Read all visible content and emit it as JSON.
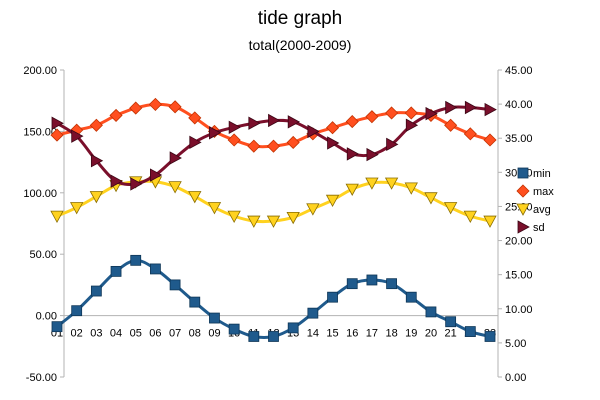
{
  "chart_data": {
    "type": "line",
    "title": "tide graph",
    "subtitle": "total(2000-2009)",
    "xlabel": "",
    "ylabel": "",
    "categories": [
      "01",
      "02",
      "03",
      "04",
      "05",
      "06",
      "07",
      "08",
      "09",
      "10",
      "11",
      "12",
      "13",
      "14",
      "15",
      "16",
      "17",
      "18",
      "19",
      "20",
      "21",
      "22",
      "23"
    ],
    "y_left": {
      "range": [
        -50,
        200
      ],
      "ticks": [
        "-50.00",
        "0.00",
        "50.00",
        "100.00",
        "150.00",
        "200.00"
      ]
    },
    "y_right": {
      "range": [
        0,
        45
      ],
      "ticks": [
        "0.00",
        "5.00",
        "10.00",
        "15.00",
        "20.00",
        "25.00",
        "30.00",
        "35.00",
        "40.00",
        "45.00"
      ]
    },
    "grid": false,
    "legend_position": "right",
    "series": [
      {
        "name": "min",
        "axis": "left",
        "color": "#1f5a8c",
        "marker": "square",
        "values": [
          -9,
          4,
          20,
          36,
          45,
          38,
          25,
          11,
          -2,
          -11,
          -17,
          -17,
          -10,
          2,
          15,
          26,
          29,
          26,
          15,
          3,
          -5,
          -13,
          -17
        ]
      },
      {
        "name": "max",
        "axis": "left",
        "color": "#ff4f1f",
        "marker": "diamond",
        "values": [
          147,
          151,
          155,
          163,
          169,
          172,
          170,
          161,
          150,
          143,
          138,
          138,
          141,
          148,
          153,
          158,
          162,
          165,
          165,
          163,
          155,
          148,
          143
        ]
      },
      {
        "name": "avg",
        "axis": "left",
        "color": "#ffd21f",
        "marker": "triangle-down",
        "values": [
          81,
          88,
          97,
          106,
          109,
          109,
          105,
          97,
          88,
          81,
          77,
          77,
          80,
          87,
          94,
          103,
          108,
          108,
          104,
          96,
          88,
          81,
          77
        ]
      },
      {
        "name": "sd",
        "axis": "right",
        "color": "#7a0f2b",
        "marker": "triangle-right",
        "values": [
          37.2,
          35.3,
          31.7,
          28.7,
          28.3,
          29.6,
          32.1,
          34.4,
          35.8,
          36.6,
          37.2,
          37.6,
          37.4,
          36.0,
          34.3,
          32.7,
          32.6,
          34.1,
          36.9,
          38.6,
          39.5,
          39.5,
          39.2
        ]
      }
    ]
  }
}
